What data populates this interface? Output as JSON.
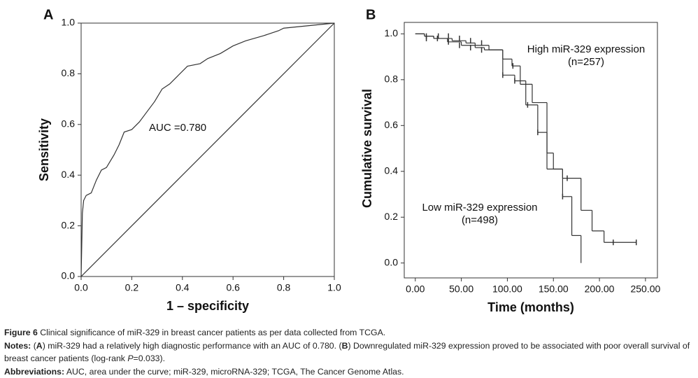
{
  "chart_data": [
    {
      "type": "line",
      "panel": "A",
      "xlabel": "1 – specificity",
      "ylabel": "Sensitivity",
      "annotations": [
        "AUC =0.780"
      ],
      "xlim": [
        0,
        1
      ],
      "ylim": [
        0,
        1
      ],
      "xticks": [
        {
          "value": 0,
          "label": "0.0"
        },
        {
          "value": 0.2,
          "label": "0.2"
        },
        {
          "value": 0.4,
          "label": "0.4"
        },
        {
          "value": 0.6,
          "label": "0.6"
        },
        {
          "value": 0.8,
          "label": "0.8"
        },
        {
          "value": 1,
          "label": "1.0"
        }
      ],
      "yticks": [
        {
          "value": 0,
          "label": "0.0"
        },
        {
          "value": 0.2,
          "label": "0.2"
        },
        {
          "value": 0.4,
          "label": "0.4"
        },
        {
          "value": 0.6,
          "label": "0.6"
        },
        {
          "value": 0.8,
          "label": "0.8"
        },
        {
          "value": 1,
          "label": "1.0"
        }
      ],
      "series": [
        {
          "color": "#333333",
          "x": [
            0,
            0.005,
            0.01,
            0.02,
            0.04,
            0.06,
            0.08,
            0.1,
            0.13,
            0.15,
            0.17,
            0.2,
            0.23,
            0.26,
            0.29,
            0.32,
            0.35,
            0.38,
            0.42,
            0.47,
            0.5,
            0.55,
            0.6,
            0.65,
            0.72,
            0.78,
            0.8,
            0.9,
            1
          ],
          "values": [
            0,
            0.25,
            0.3,
            0.32,
            0.33,
            0.38,
            0.42,
            0.43,
            0.48,
            0.52,
            0.57,
            0.58,
            0.61,
            0.65,
            0.69,
            0.74,
            0.76,
            0.79,
            0.83,
            0.84,
            0.86,
            0.88,
            0.91,
            0.93,
            0.95,
            0.97,
            0.98,
            0.99,
            1
          ]
        },
        {
          "color": "#333333",
          "x": [
            0,
            1
          ],
          "values": [
            0,
            1
          ]
        }
      ]
    },
    {
      "type": "line",
      "step": true,
      "panel": "B",
      "xlabel": "Time (months)",
      "ylabel": "Cumulative survival",
      "annotations": [
        "High miR-329 expression",
        "(n=257)",
        "Low miR-329 expression",
        "(n=498)"
      ],
      "xlim": [
        -12,
        263
      ],
      "ylim": [
        -0.065,
        1.05
      ],
      "xticks": [
        {
          "value": 0,
          "label": "0.00"
        },
        {
          "value": 50,
          "label": "50.00"
        },
        {
          "value": 100,
          "label": "100.00"
        },
        {
          "value": 150,
          "label": "150.00"
        },
        {
          "value": 200,
          "label": "200.00"
        },
        {
          "value": 250,
          "label": "250.00"
        }
      ],
      "yticks": [
        {
          "value": 0,
          "label": "0.0"
        },
        {
          "value": 0.2,
          "label": "0.2"
        },
        {
          "value": 0.4,
          "label": "0.4"
        },
        {
          "value": 0.6,
          "label": "0.6"
        },
        {
          "value": 0.8,
          "label": "0.8"
        },
        {
          "value": 1,
          "label": "1.0"
        }
      ],
      "series": [
        {
          "color": "#333333",
          "x": [
            0,
            10,
            20,
            40,
            55,
            65,
            80,
            95,
            105,
            114,
            127,
            143,
            150,
            160,
            180,
            192,
            205,
            240
          ],
          "values": [
            1.0,
            0.99,
            0.98,
            0.97,
            0.96,
            0.95,
            0.93,
            0.89,
            0.86,
            0.78,
            0.7,
            0.48,
            0.41,
            0.37,
            0.23,
            0.14,
            0.09,
            0.09
          ],
          "censored": {
            "x": [
              12,
              25,
              36,
              48,
              60,
              72,
              106,
              165,
              215,
              240
            ],
            "values": [
              0.99,
              0.99,
              0.99,
              0.98,
              0.97,
              0.96,
              0.86,
              0.37,
              0.09,
              0.09
            ]
          }
        },
        {
          "color": "#333333",
          "x": [
            0,
            10,
            20,
            35,
            50,
            65,
            75,
            95,
            108,
            120,
            133,
            143,
            160,
            170,
            180
          ],
          "values": [
            1.0,
            0.99,
            0.98,
            0.965,
            0.95,
            0.94,
            0.93,
            0.82,
            0.795,
            0.69,
            0.57,
            0.41,
            0.29,
            0.12,
            0.0
          ],
          "censored": {
            "x": [
              12,
              24,
              36,
              48,
              60,
              72,
              95,
              108,
              122,
              133,
              160
            ],
            "values": [
              0.98,
              0.98,
              0.965,
              0.95,
              0.94,
              0.93,
              0.82,
              0.795,
              0.69,
              0.57,
              0.29
            ]
          }
        }
      ]
    }
  ],
  "caption": {
    "figure_label": "Figure 6",
    "figure_text": "Clinical significance of miR-329 in breast cancer patients as per data collected from TCGA.",
    "notes_label": "Notes:",
    "notes": [
      "(",
      "A",
      ") miR-329 had a relatively high diagnostic performance with an AUC of 0.780. (",
      "B",
      ") Downregulated miR-329 expression proved to be associated with poor overall survival of breast cancer patients (log-rank ",
      "P",
      "=0.033)."
    ],
    "abbreviations_label": "Abbreviations:",
    "abbreviations": "AUC, area under the curve; miR-329, microRNA-329; TCGA, The Cancer Genome Atlas."
  }
}
